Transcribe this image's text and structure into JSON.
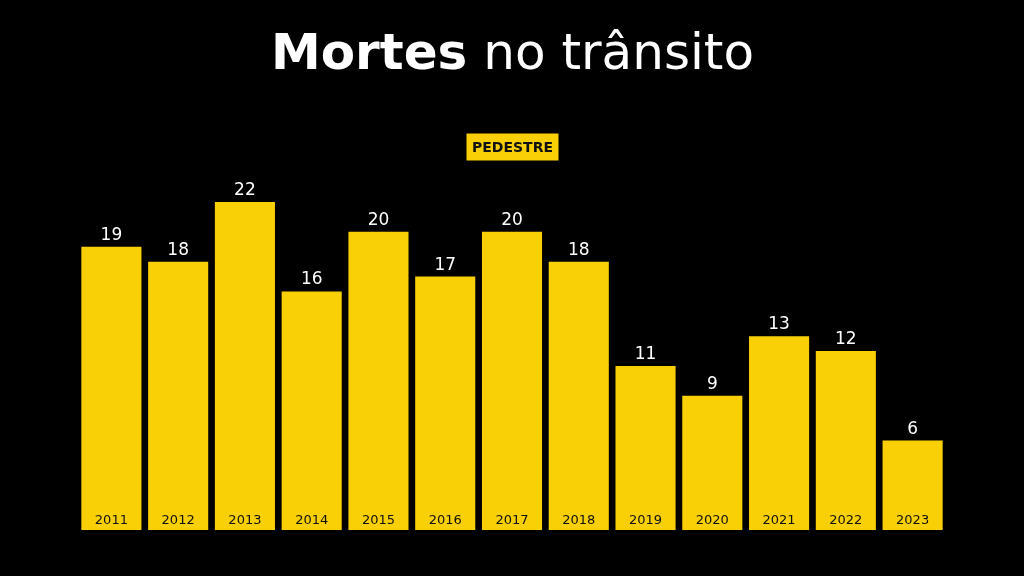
{
  "chart_data": {
    "type": "bar",
    "title": "Mortes no trânsito",
    "subtitle": "PEDESTRE",
    "categories": [
      "2011",
      "2012",
      "2013",
      "2014",
      "2015",
      "2016",
      "2017",
      "2018",
      "2019",
      "2020",
      "2021",
      "2022",
      "2023"
    ],
    "values": [
      19,
      18,
      22,
      16,
      20,
      17,
      20,
      18,
      11,
      9,
      13,
      12,
      6
    ],
    "color": "#f9d006",
    "data_labels": true
  }
}
